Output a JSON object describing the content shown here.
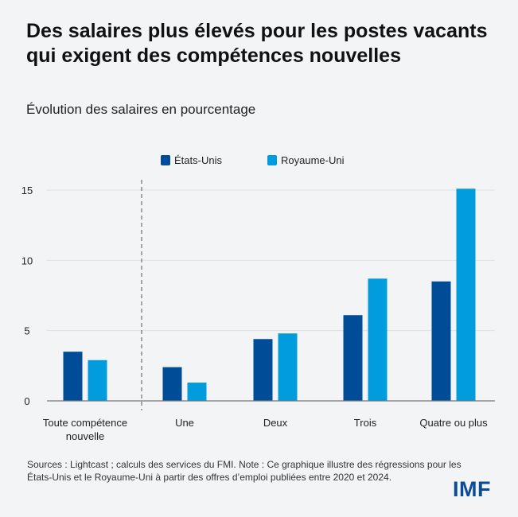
{
  "title": "Des salaires plus élevés pour les postes vacants qui exigent des compétences nouvelles",
  "subtitle": "Évolution des salaires en pourcentage",
  "source": "Sources : Lightcast ; calculs des services du FMI. Note : Ce graphique illustre des régressions pour les États-Unis et le Royaume-Uni à partir des offres d’emploi publiées entre 2020 et 2024.",
  "logo": "IMF",
  "chart_data": {
    "type": "bar",
    "categories": [
      "Toute compétence nouvelle",
      "Une",
      "Deux",
      "Trois",
      "Quatre ou plus"
    ],
    "series": [
      {
        "name": "États-Unis",
        "color": "#004c97",
        "values": [
          3.5,
          2.4,
          4.4,
          6.1,
          8.5
        ]
      },
      {
        "name": "Royaume-Uni",
        "color": "#009cde",
        "values": [
          2.9,
          1.3,
          4.8,
          8.7,
          15.1
        ]
      }
    ],
    "yticks": [
      "0",
      "5",
      "10",
      "15"
    ],
    "ylim": [
      0,
      15
    ],
    "grid": true,
    "legend": "top-center",
    "separator_after_category": 0
  }
}
